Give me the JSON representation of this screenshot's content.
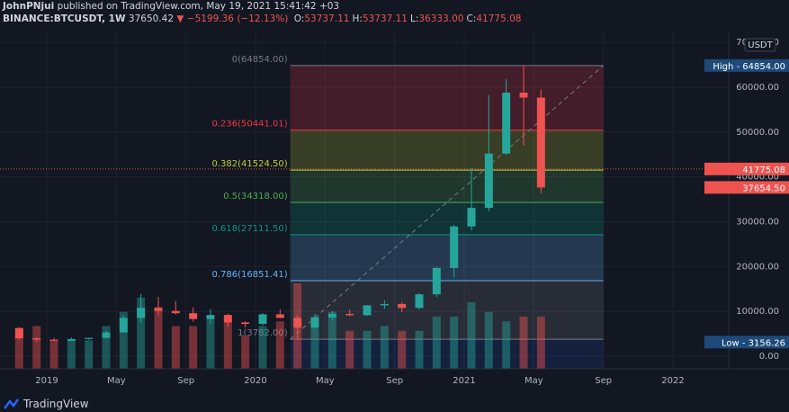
{
  "header": {
    "author": "JohnPNjui",
    "published": "published on TradingView.com, May 19, 2021 15:41:42 +03",
    "symbol": "BINANCE:BTCUSDT, 1W",
    "last": "37650.42",
    "change": "▼ −5199.36 (−12.13%)",
    "ohlc": [
      {
        "key": "O:",
        "value": "53737.11"
      },
      {
        "key": "H:",
        "value": "53737.11"
      },
      {
        "key": "L:",
        "value": "36333.00"
      },
      {
        "key": "C:",
        "value": "41775.08"
      }
    ]
  },
  "footer": {
    "brand": "TradingView"
  },
  "chart_data": {
    "type": "candlestick",
    "currency": "USDT",
    "x": [
      "2018-11",
      "2018-12",
      "2019-01",
      "2019-02",
      "2019-03",
      "2019-04",
      "2019-05",
      "2019-06",
      "2019-07",
      "2019-08",
      "2019-09",
      "2019-10",
      "2019-11",
      "2019-12",
      "2020-01",
      "2020-02",
      "2020-03",
      "2020-04",
      "2020-05",
      "2020-06",
      "2020-07",
      "2020-08",
      "2020-09",
      "2020-10",
      "2020-11",
      "2020-12",
      "2021-01",
      "2021-02",
      "2021-03",
      "2021-04",
      "2021-05"
    ],
    "open": [
      6300,
      4000,
      3700,
      3450,
      3850,
      4100,
      5300,
      8550,
      10800,
      10100,
      9600,
      8300,
      9200,
      7550,
      7200,
      9350,
      8550,
      6400,
      8650,
      9450,
      9150,
      11350,
      11650,
      10780,
      13800,
      19700,
      28950,
      33100,
      45200,
      58800,
      57700
    ],
    "high": [
      6500,
      4200,
      4100,
      4200,
      4100,
      5600,
      9000,
      13900,
      13200,
      12300,
      10900,
      10500,
      9500,
      7750,
      9600,
      10500,
      9200,
      9450,
      10100,
      10400,
      11450,
      12500,
      12100,
      14100,
      19900,
      29300,
      41950,
      58300,
      61800,
      64854,
      59500
    ],
    "low": [
      3700,
      3200,
      3400,
      3400,
      3700,
      4050,
      5300,
      7500,
      9100,
      9300,
      7700,
      7300,
      6500,
      6400,
      6850,
      8450,
      3782,
      6150,
      8100,
      8900,
      8950,
      10550,
      9850,
      10400,
      13200,
      17600,
      28100,
      32300,
      44900,
      47000,
      36333
    ],
    "close": [
      4000,
      3700,
      3450,
      3850,
      4100,
      5300,
      8550,
      10800,
      10100,
      9600,
      8300,
      9200,
      7550,
      7200,
      9350,
      8550,
      6400,
      8650,
      9450,
      9150,
      11350,
      11650,
      10780,
      13800,
      19700,
      28950,
      33100,
      45200,
      58800,
      57700,
      37650
    ],
    "volume": [
      40,
      45,
      30,
      30,
      30,
      45,
      60,
      75,
      65,
      45,
      45,
      55,
      50,
      35,
      45,
      50,
      90,
      55,
      60,
      40,
      40,
      45,
      40,
      40,
      55,
      55,
      70,
      60,
      50,
      55,
      55
    ],
    "up_color": "#26a69a",
    "down_color": "#ef5350",
    "xlim": [
      "2018-10",
      "2022-04"
    ],
    "xticks": [
      {
        "value": "2019-01",
        "label": "2019"
      },
      {
        "value": "2019-05",
        "label": "May"
      },
      {
        "value": "2019-09",
        "label": "Sep"
      },
      {
        "value": "2020-01",
        "label": "2020"
      },
      {
        "value": "2020-05",
        "label": "May"
      },
      {
        "value": "2020-09",
        "label": "Sep"
      },
      {
        "value": "2021-01",
        "label": "2021"
      },
      {
        "value": "2021-05",
        "label": "May"
      },
      {
        "value": "2021-09",
        "label": "Sep"
      },
      {
        "value": "2022-01",
        "label": "2022"
      }
    ],
    "ylim": [
      -2810,
      71440
    ],
    "yticks": [
      {
        "value": 0,
        "label": "0.00"
      },
      {
        "value": 10000,
        "label": "10000.00"
      },
      {
        "value": 20000,
        "label": "20000.00"
      },
      {
        "value": 30000,
        "label": "30000.00"
      },
      {
        "value": 40000,
        "label": "40000.00"
      },
      {
        "value": 50000,
        "label": "50000.00"
      },
      {
        "value": 60000,
        "label": "60000.00"
      },
      {
        "value": 70000,
        "label": "70000.00"
      }
    ],
    "grid": true,
    "fib_range": [
      "2020-03",
      "2021-09"
    ],
    "fib_levels": [
      {
        "value": 64854,
        "label": "0(64854.00)",
        "color": "#787b86"
      },
      {
        "value": 50441.01,
        "label": "0.236(50441.01)",
        "color": "#f23645"
      },
      {
        "value": 41524.5,
        "label": "0.382(41524.50)",
        "color": "#c0ca33"
      },
      {
        "value": 34318,
        "label": "0.5(34318.00)",
        "color": "#4caf50"
      },
      {
        "value": 27111.5,
        "label": "0.618(27111.50)",
        "color": "#089981"
      },
      {
        "value": 16851.41,
        "label": "0.786(16851.41)",
        "color": "#64b5f6"
      },
      {
        "value": 3782,
        "label": "1(3782.00)",
        "color": "#787b86"
      }
    ],
    "price_line": {
      "value": 41775.08,
      "color": "#ef5350"
    },
    "badges": [
      {
        "value": 64854,
        "label": "High - 64854.00",
        "color": "#1e4a7a"
      },
      {
        "value": 41775.08,
        "label": "41775.08",
        "color": "#ef5350"
      },
      {
        "value": 37654.5,
        "label": "37654.50",
        "color": "#ef5350"
      },
      {
        "value": 3156.26,
        "label": "Low - 3156.26",
        "color": "#1e4a7a"
      }
    ]
  }
}
